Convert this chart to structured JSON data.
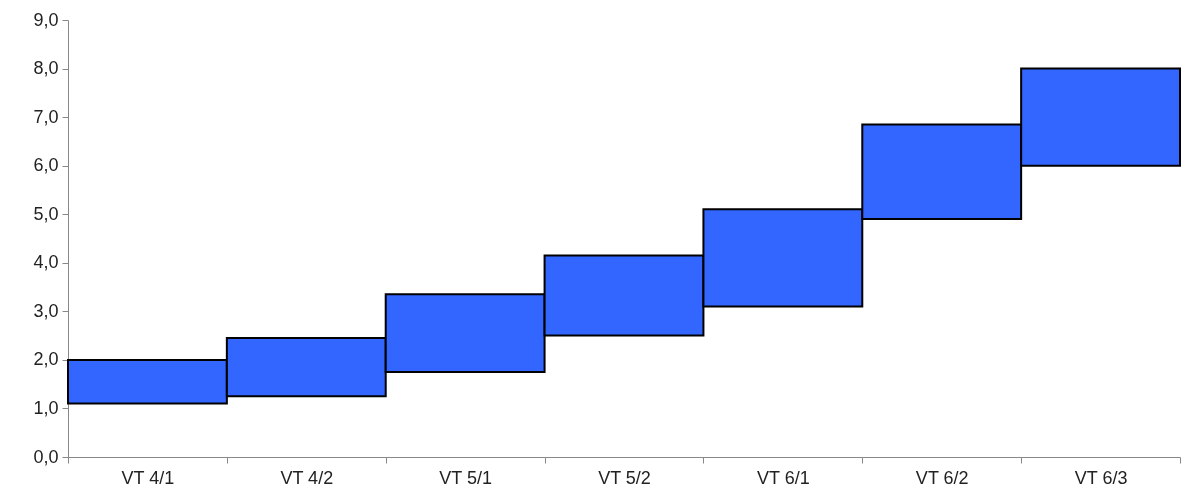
{
  "chart_data": {
    "type": "bar",
    "categories": [
      "VT 4/1",
      "VT 4/2",
      "VT 5/1",
      "VT 5/2",
      "VT 6/1",
      "VT 6/2",
      "VT 6/3"
    ],
    "base": [
      1.1,
      1.25,
      1.75,
      2.5,
      3.1,
      4.9,
      6.0
    ],
    "values": [
      0.9,
      1.2,
      1.6,
      1.65,
      2.0,
      1.95,
      2.0
    ],
    "color": "#3366ff",
    "ylim": [
      0,
      9
    ],
    "yticks": [
      {
        "value": 0,
        "label": "0,0"
      },
      {
        "value": 1,
        "label": "1,0"
      },
      {
        "value": 2,
        "label": "2,0"
      },
      {
        "value": 3,
        "label": "3,0"
      },
      {
        "value": 4,
        "label": "4,0"
      },
      {
        "value": 5,
        "label": "5,0"
      },
      {
        "value": 6,
        "label": "6,0"
      },
      {
        "value": 7,
        "label": "7,0"
      },
      {
        "value": 8,
        "label": "8,0"
      },
      {
        "value": 9,
        "label": "9,0"
      }
    ],
    "grid": false
  }
}
